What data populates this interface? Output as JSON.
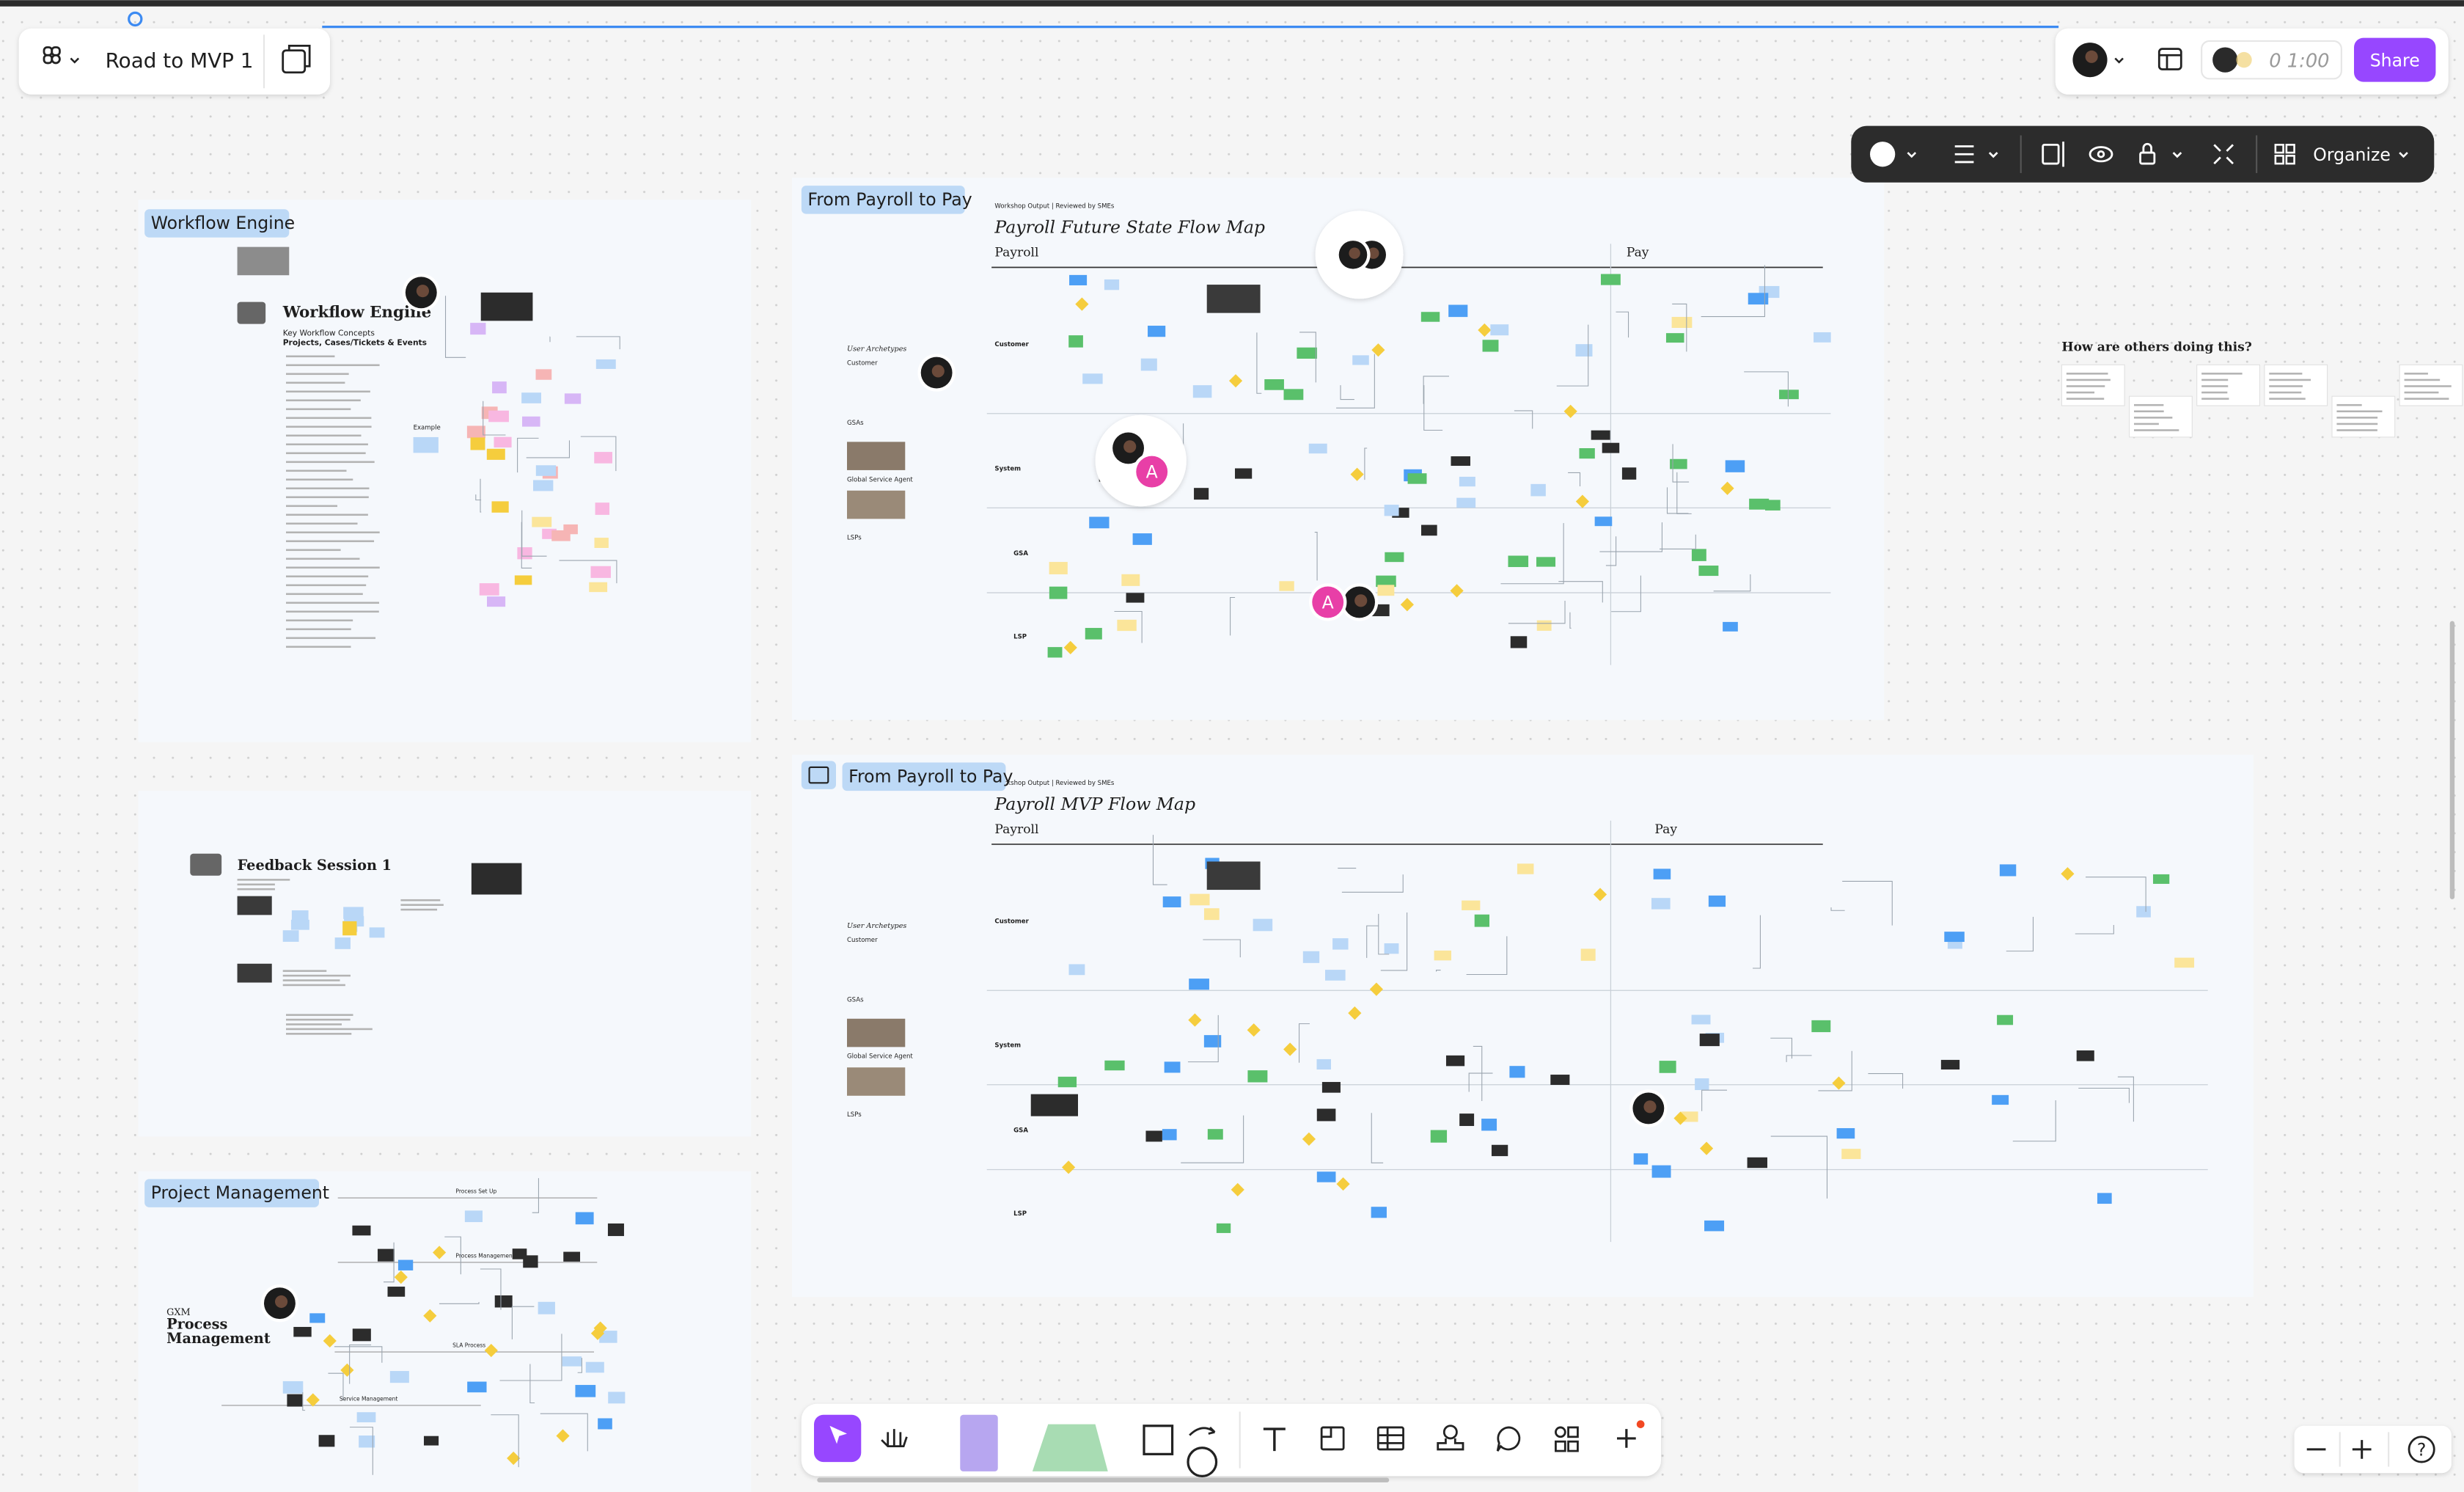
{
  "toolbar": {
    "file_name": "Road to MVP 1",
    "timer": "0 1:00",
    "share": "Share",
    "organize": "Organize",
    "help": "?"
  },
  "workflow_engine": {
    "label": "Workflow Engine",
    "title": "Workflow Engine",
    "subtitle": "Key Workflow Concepts",
    "heading": "Projects, Cases/Tickets & Events",
    "example": "Example"
  },
  "future_map": {
    "label": "From Payroll to Pay",
    "meta": "Workshop Output | Reviewed by SMEs",
    "title": "Payroll Future State Flow Map",
    "phases": [
      "Payroll",
      "Pay"
    ],
    "lanes": [
      "Customer",
      "System",
      "GSA",
      "LSP"
    ],
    "archetypes": {
      "title": "User Archetypes",
      "items": [
        "Customer",
        "GSAs",
        "Global Service Agent",
        "LSPs"
      ]
    }
  },
  "feedback": {
    "label": "Feedback Session",
    "title": "Feedback Session 1"
  },
  "project_management": {
    "label": "Project Management",
    "kicker": "GXM",
    "title_lines": [
      "Process",
      "Management"
    ],
    "steps": [
      "Process Set Up",
      "Process Management",
      "SLA Process",
      "Service Management"
    ]
  },
  "mvp_map": {
    "label": "From Payroll to Pay",
    "meta": "Workshop Output | Reviewed by SMEs",
    "title": "Payroll MVP Flow Map",
    "phases": [
      "Payroll",
      "Pay"
    ],
    "lanes": [
      "Customer",
      "System",
      "GSA",
      "LSP"
    ],
    "archetypes": {
      "title": "User Archetypes",
      "items": [
        "Customer",
        "GSAs",
        "Global Service Agent",
        "LSPs"
      ]
    }
  },
  "side_note": {
    "title": "How are others doing this?"
  },
  "avatar_initial": "A"
}
